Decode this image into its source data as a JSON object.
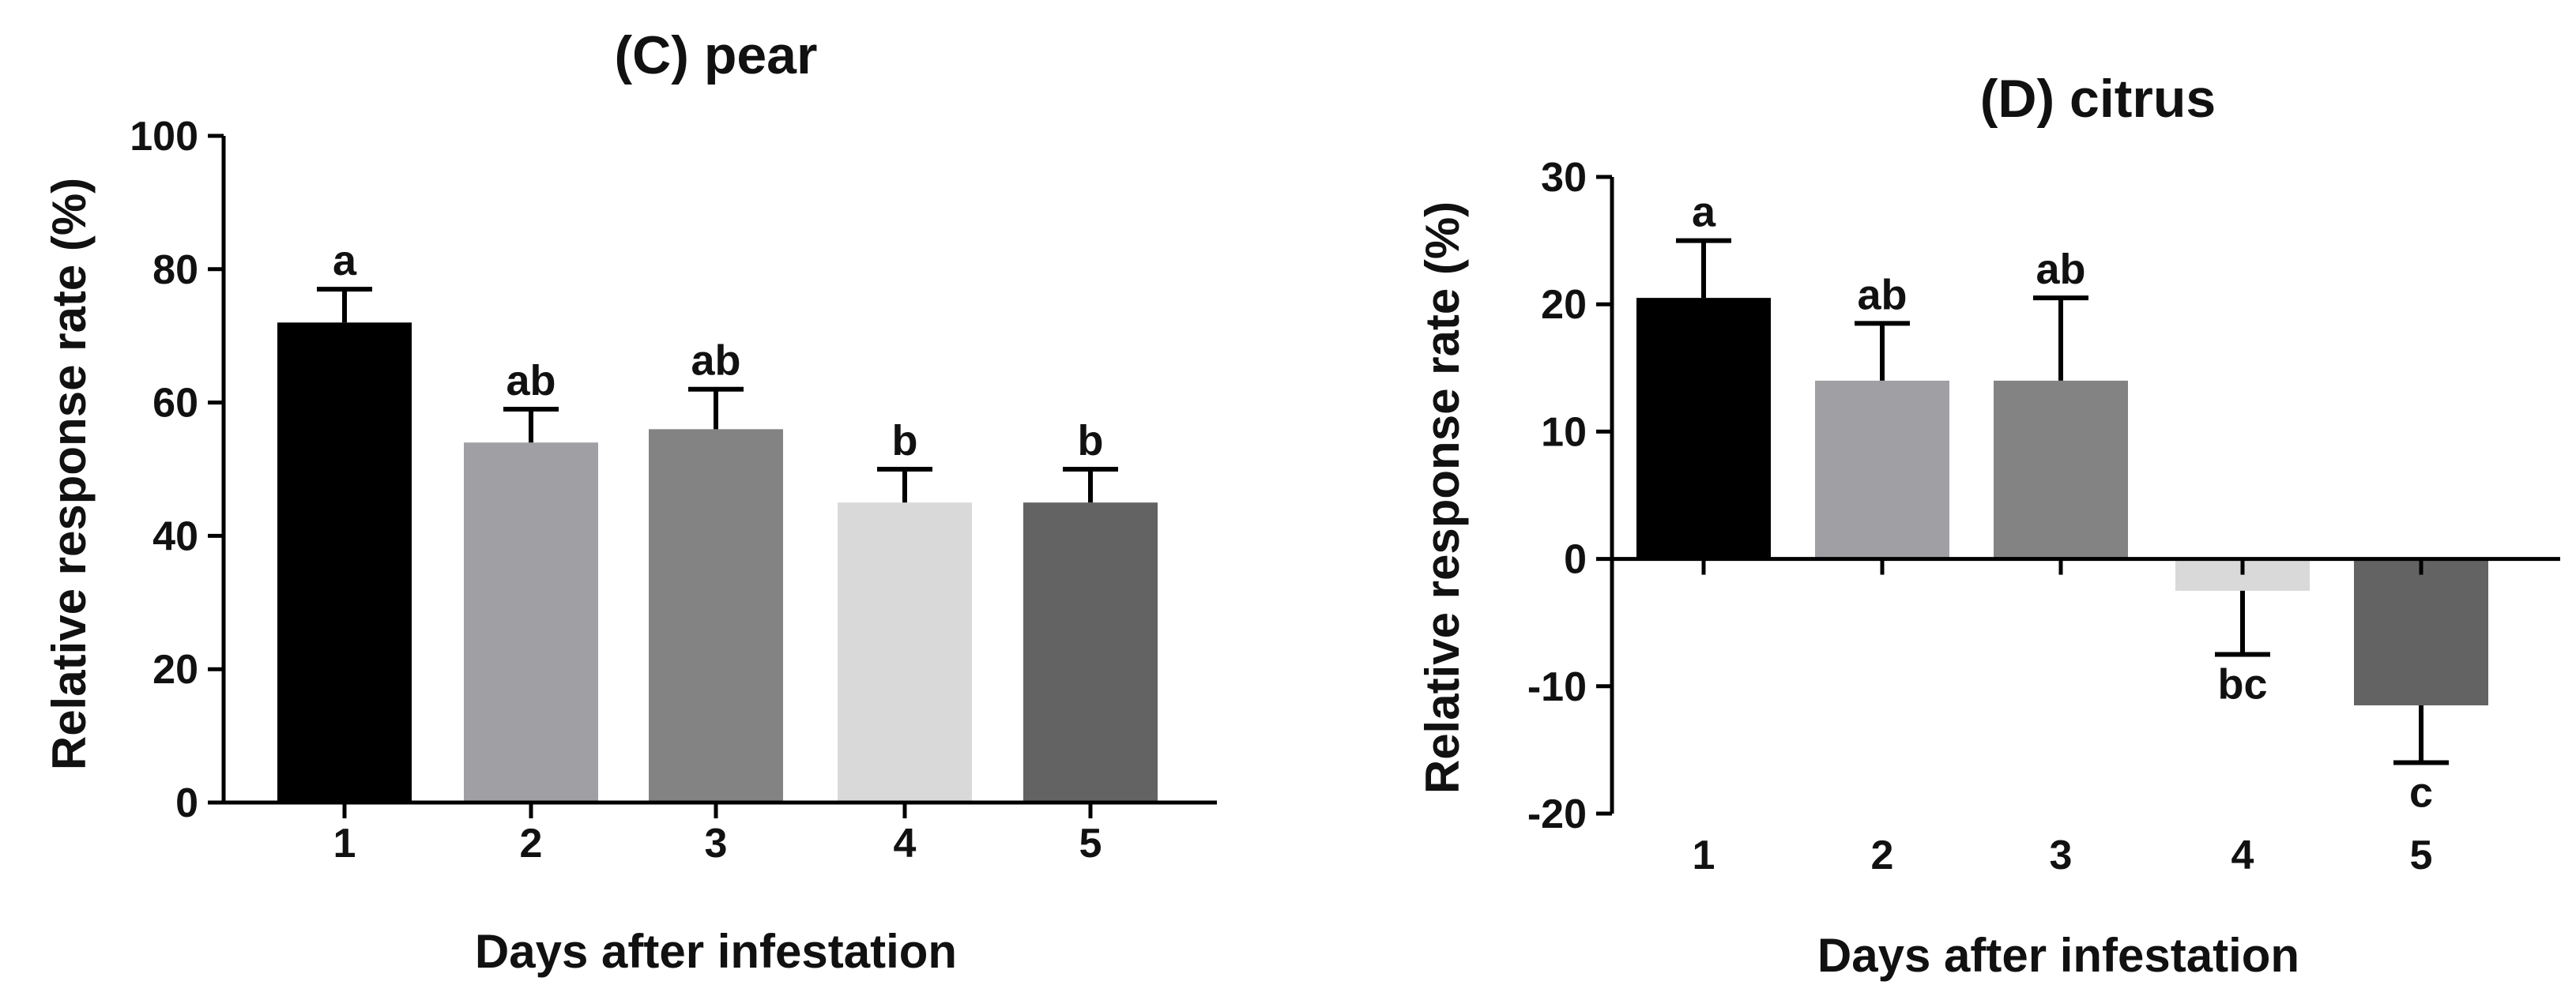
{
  "chart_data": [
    {
      "type": "bar",
      "title": "(C) pear",
      "xlabel": "Days after infestation",
      "ylabel": "Relative response rate (%)",
      "categories": [
        "1",
        "2",
        "3",
        "4",
        "5"
      ],
      "values": [
        72,
        54,
        56,
        45,
        45
      ],
      "errors": [
        5,
        5,
        6,
        5,
        5
      ],
      "significance": [
        "a",
        "ab",
        "ab",
        "b",
        "b"
      ],
      "bar_colors": [
        "#000000",
        "#a0a0a4",
        "#838383",
        "#d9d9d9",
        "#636363"
      ],
      "ylim": [
        0,
        100
      ],
      "yticks": [
        0,
        20,
        40,
        60,
        80,
        100
      ],
      "ytick_labels": [
        "0",
        "20",
        "40",
        "60",
        "80",
        "100"
      ]
    },
    {
      "type": "bar",
      "title": "(D) citrus",
      "xlabel": "Days after infestation",
      "ylabel": "Relative response rate (%)",
      "categories": [
        "1",
        "2",
        "3",
        "4",
        "5"
      ],
      "values": [
        20.5,
        14,
        14,
        -2.5,
        -11.5
      ],
      "errors": [
        4.5,
        4.5,
        6.5,
        5,
        4.5
      ],
      "significance": [
        "a",
        "ab",
        "ab",
        "bc",
        "c"
      ],
      "bar_colors": [
        "#000000",
        "#a0a0a4",
        "#838383",
        "#d9d9d9",
        "#636363"
      ],
      "ylim": [
        -20,
        30
      ],
      "yticks": [
        -20,
        -10,
        0,
        10,
        20,
        30
      ],
      "ytick_labels": [
        "-20",
        "-10",
        "0",
        "10",
        "20",
        "30"
      ]
    }
  ]
}
